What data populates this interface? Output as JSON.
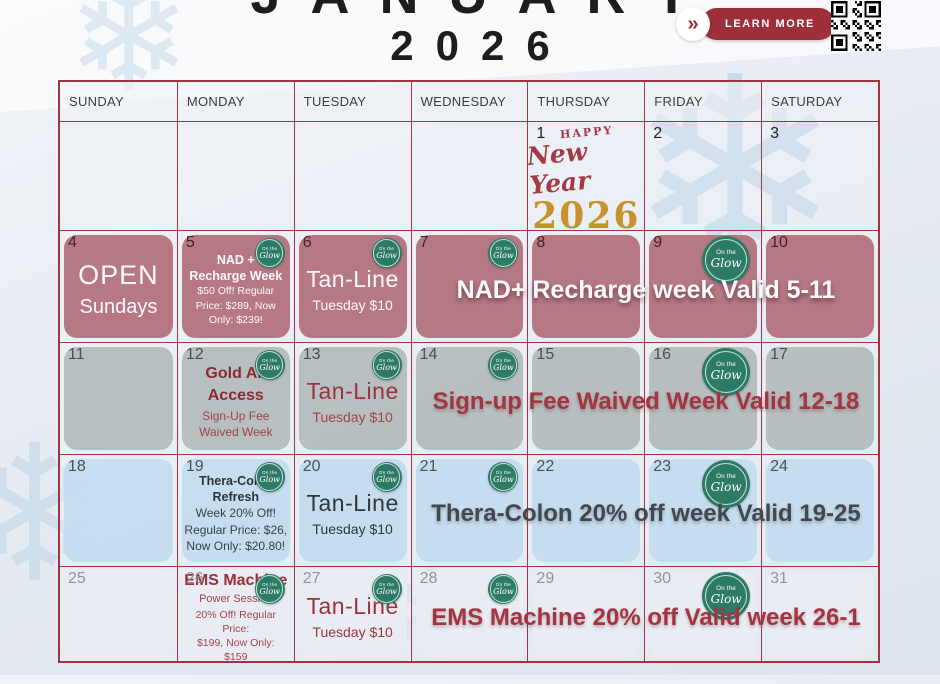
{
  "title": {
    "month": "JANUARY",
    "year": "2026"
  },
  "learn_more": {
    "label": "LEARN MORE",
    "chevron": "»"
  },
  "badge": {
    "line1": "On the",
    "line2": "Glow"
  },
  "colors": {
    "accent_red": "#9c2f38",
    "grid_border": "#9e3540",
    "rose_week": "#b1707a",
    "gray_week": "#b4bcbd",
    "blue_week": "#c4dcee",
    "white_week": "#e9edf2",
    "badge_green": "#2d7b66",
    "gold": "#c6932e"
  },
  "calendar": {
    "weekdays": [
      "SUNDAY",
      "MONDAY",
      "TUESDAY",
      "WEDNESDAY",
      "THURSDAY",
      "FRIDAY",
      "SATURDAY"
    ],
    "weeks": [
      {
        "theme": "plain",
        "banner": null,
        "cells": [
          {},
          {},
          {},
          {},
          {
            "day": "1",
            "new_year": {
              "line1": "HAPPY",
              "line2": "New Year",
              "line3": "2026"
            }
          },
          {
            "day": "2"
          },
          {
            "day": "3"
          }
        ]
      },
      {
        "theme": "rose",
        "banner": {
          "text": "NAD+ Recharge week Valid 5-11",
          "style": "white"
        },
        "cells": [
          {
            "day": "4",
            "square": true,
            "lines": [
              {
                "role": "xl",
                "text": "OPEN"
              },
              {
                "role": "lg",
                "text": "Sundays"
              }
            ]
          },
          {
            "day": "5",
            "square": true,
            "badge": "small",
            "lines": [
              {
                "role": "bold-sm",
                "text": "NAD +"
              },
              {
                "role": "bold-sm",
                "text": "Recharge Week"
              },
              {
                "role": "xs",
                "text": "$50 Off! Regular"
              },
              {
                "role": "xs",
                "text": "Price: $289, Now"
              },
              {
                "role": "xs",
                "text": "Only: $239!"
              }
            ]
          },
          {
            "day": "6",
            "square": true,
            "badge": "small",
            "lines": [
              {
                "role": "tan",
                "text": "Tan-Line"
              },
              {
                "role": "sub",
                "text": "Tuesday $10"
              }
            ]
          },
          {
            "day": "7",
            "square": true,
            "badge": "small"
          },
          {
            "day": "8",
            "square": true
          },
          {
            "day": "9",
            "square": true,
            "badge": "large"
          },
          {
            "day": "10",
            "square": true
          }
        ]
      },
      {
        "theme": "gray",
        "banner": {
          "text": "Sign-up Fee Waived Week Valid 12-18",
          "style": "red"
        },
        "cells": [
          {
            "day": "11",
            "square": true
          },
          {
            "day": "12",
            "square": true,
            "badge": "small",
            "lines": [
              {
                "role": "bold-md",
                "text": "Gold All Access"
              },
              {
                "role": "sm",
                "text": "Sign-Up Fee"
              },
              {
                "role": "sm",
                "text": "Waived Week"
              }
            ]
          },
          {
            "day": "13",
            "square": true,
            "badge": "small",
            "lines": [
              {
                "role": "tan",
                "text": "Tan-Line"
              },
              {
                "role": "sub",
                "text": "Tuesday $10"
              }
            ]
          },
          {
            "day": "14",
            "square": true,
            "badge": "small"
          },
          {
            "day": "15",
            "square": true
          },
          {
            "day": "16",
            "square": true,
            "badge": "large"
          },
          {
            "day": "17",
            "square": true
          }
        ]
      },
      {
        "theme": "blue",
        "banner": {
          "text": "Thera-Colon 20% off week Valid 19-25",
          "style": "dark"
        },
        "cells": [
          {
            "day": "18",
            "square": true
          },
          {
            "day": "19",
            "square": true,
            "badge": "small",
            "lines": [
              {
                "role": "bold-sm",
                "text": "Thera-Colon"
              },
              {
                "role": "bold-sm",
                "text": "Refresh"
              },
              {
                "role": "sm",
                "text": "Week 20% Off!"
              },
              {
                "role": "sm",
                "text": "Regular Price: $26,"
              },
              {
                "role": "sm",
                "text": "Now Only: $20.80!"
              }
            ]
          },
          {
            "day": "20",
            "square": true,
            "badge": "small",
            "lines": [
              {
                "role": "tan",
                "text": "Tan-Line"
              },
              {
                "role": "sub",
                "text": "Tuesday $10"
              }
            ]
          },
          {
            "day": "21",
            "square": true,
            "badge": "small"
          },
          {
            "day": "22",
            "square": true
          },
          {
            "day": "23",
            "square": true,
            "badge": "large"
          },
          {
            "day": "24",
            "square": true
          }
        ]
      },
      {
        "theme": "white",
        "banner": {
          "text": "EMS Machine 20% off Valid week 26-1",
          "style": "red"
        },
        "cells": [
          {
            "day": "25",
            "square": true
          },
          {
            "day": "26",
            "square": true,
            "badge": "small",
            "lines": [
              {
                "role": "bold-md",
                "text": "EMS Machine"
              },
              {
                "role": "xs2",
                "text": "Power Session"
              },
              {
                "role": "xs",
                "text": "20% Off! Regular Price:"
              },
              {
                "role": "xs",
                "text": "$199, Now Only: $159"
              }
            ]
          },
          {
            "day": "27",
            "square": true,
            "badge": "small",
            "lines": [
              {
                "role": "tan",
                "text": "Tan-Line"
              },
              {
                "role": "sub",
                "text": "Tuesday $10"
              }
            ]
          },
          {
            "day": "28",
            "square": true,
            "badge": "small"
          },
          {
            "day": "29",
            "square": true
          },
          {
            "day": "30",
            "square": true,
            "badge": "large"
          },
          {
            "day": "31",
            "square": true
          }
        ]
      }
    ]
  }
}
